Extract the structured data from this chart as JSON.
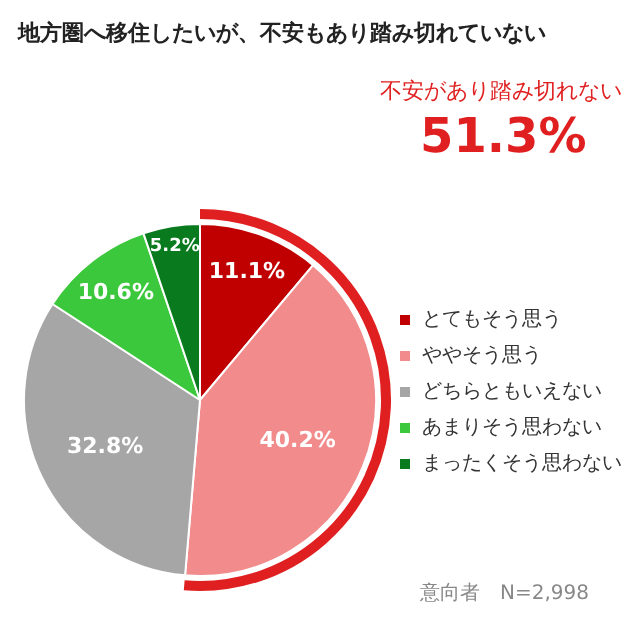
{
  "chart_data": {
    "type": "pie",
    "title": "地方圏へ移住したいが、不安もあり踏み切れていない",
    "categories": [
      "とてもそう思う",
      "ややそう思う",
      "どちらともいえない",
      "あまりそう思わない",
      "まったくそう思わない"
    ],
    "values": [
      11.1,
      40.2,
      32.8,
      10.6,
      5.2
    ],
    "colors": [
      "#c00000",
      "#f28b8b",
      "#a6a6a6",
      "#3cc83c",
      "#0a7a1e"
    ],
    "value_labels": [
      "11.1%",
      "40.2%",
      "32.8%",
      "10.6%",
      "5.2%"
    ],
    "legend": "right",
    "annotations": [
      "不安があり踏み切れない",
      "51.3%",
      "意向者　N=2,998"
    ]
  }
}
